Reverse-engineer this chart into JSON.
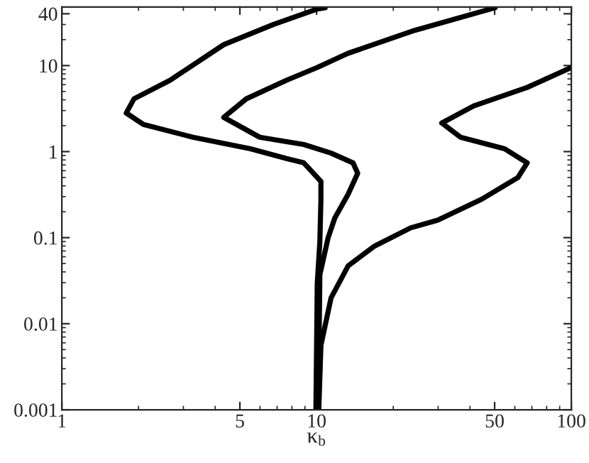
{
  "chart_data": {
    "type": "line",
    "xlabel": "κ$_{b}$",
    "log": "xy",
    "xlim": [
      1,
      100
    ],
    "ylim": [
      0.001,
      48
    ],
    "xticks": [
      1,
      5,
      10,
      50,
      100
    ],
    "yticks": [
      0.001,
      0.01,
      0.1,
      1,
      10,
      40
    ],
    "grid": false,
    "legend": false,
    "marker": "none",
    "line_style": "solid",
    "series": [
      {
        "color": "#000000",
        "x": [
          9.94,
          10.06,
          10.3,
          10.4,
          10.4,
          8.91,
          7.62,
          5.5,
          3.27,
          2.09,
          1.79,
          1.92,
          2.66,
          4.32,
          6.75,
          10.06,
          10.8
        ],
        "values": [
          0.001,
          0.029,
          0.09,
          0.28,
          0.45,
          0.74,
          0.83,
          1.08,
          1.47,
          2.07,
          2.81,
          4.11,
          6.75,
          17.5,
          29.9,
          45.5,
          47
        ]
      },
      {
        "color": "#000000",
        "x": [
          10.06,
          10.2,
          10.3,
          11.1,
          11.8,
          13.3,
          14.5,
          13.9,
          11.4,
          8.91,
          5.98,
          4.32,
          5.3,
          7.62,
          10.06,
          13.3,
          24.3,
          50.2
        ],
        "values": [
          0.001,
          0.0029,
          0.037,
          0.1,
          0.17,
          0.32,
          0.56,
          0.74,
          0.96,
          1.21,
          1.47,
          2.5,
          4.11,
          6.75,
          9.5,
          13.9,
          25.7,
          47
        ]
      },
      {
        "color": "#000000",
        "x": [
          10.2,
          10.4,
          11.4,
          13.3,
          16.9,
          23.4,
          29.9,
          44.5,
          61.7,
          67.1,
          54.7,
          36.7,
          31.0,
          41.4,
          67.1,
          100
        ],
        "values": [
          0.001,
          0.0056,
          0.02,
          0.047,
          0.08,
          0.13,
          0.16,
          0.28,
          0.5,
          0.74,
          1.08,
          1.47,
          2.15,
          3.4,
          5.57,
          9.5
        ]
      }
    ]
  }
}
